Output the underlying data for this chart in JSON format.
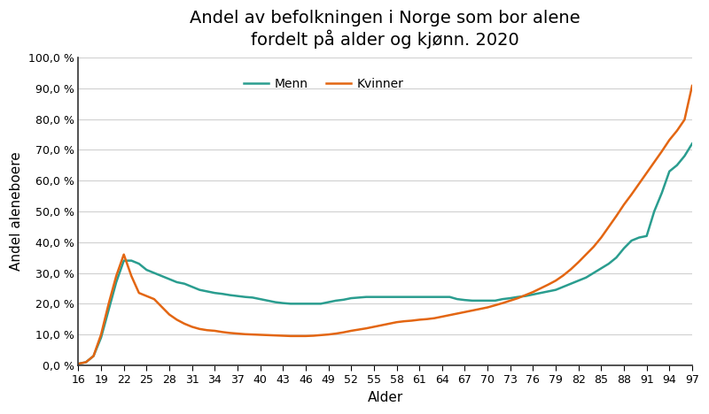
{
  "title": "Andel av befolkningen i Norge som bor alene\nfordelt på alder og kjønn. 2020",
  "xlabel": "Alder",
  "ylabel": "Andel aleneboere",
  "legend_menn": "Menn",
  "legend_kvinner": "Kvinner",
  "color_menn": "#2a9d8f",
  "color_kvinner": "#e36612",
  "ylim": [
    0,
    1.0
  ],
  "yticks": [
    0.0,
    0.1,
    0.2,
    0.3,
    0.4,
    0.5,
    0.6,
    0.7,
    0.8,
    0.9,
    1.0
  ],
  "ages": [
    16,
    17,
    18,
    19,
    20,
    21,
    22,
    23,
    24,
    25,
    26,
    27,
    28,
    29,
    30,
    31,
    32,
    33,
    34,
    35,
    36,
    37,
    38,
    39,
    40,
    41,
    42,
    43,
    44,
    45,
    46,
    47,
    48,
    49,
    50,
    51,
    52,
    53,
    54,
    55,
    56,
    57,
    58,
    59,
    60,
    61,
    62,
    63,
    64,
    65,
    66,
    67,
    68,
    69,
    70,
    71,
    72,
    73,
    74,
    75,
    76,
    77,
    78,
    79,
    80,
    81,
    82,
    83,
    84,
    85,
    86,
    87,
    88,
    89,
    90,
    91,
    92,
    93,
    94,
    95,
    96,
    97
  ],
  "menn": [
    0.005,
    0.01,
    0.03,
    0.09,
    0.18,
    0.27,
    0.34,
    0.34,
    0.33,
    0.31,
    0.3,
    0.29,
    0.28,
    0.27,
    0.265,
    0.255,
    0.245,
    0.24,
    0.235,
    0.232,
    0.228,
    0.225,
    0.222,
    0.22,
    0.215,
    0.21,
    0.205,
    0.202,
    0.2,
    0.2,
    0.2,
    0.2,
    0.2,
    0.205,
    0.21,
    0.213,
    0.218,
    0.22,
    0.222,
    0.222,
    0.222,
    0.222,
    0.222,
    0.222,
    0.222,
    0.222,
    0.222,
    0.222,
    0.222,
    0.222,
    0.215,
    0.212,
    0.21,
    0.21,
    0.21,
    0.21,
    0.215,
    0.218,
    0.222,
    0.225,
    0.23,
    0.235,
    0.24,
    0.245,
    0.255,
    0.265,
    0.275,
    0.285,
    0.3,
    0.315,
    0.33,
    0.35,
    0.38,
    0.405,
    0.415,
    0.42,
    0.5,
    0.56,
    0.63,
    0.65,
    0.68,
    0.72
  ],
  "kvinner": [
    0.005,
    0.01,
    0.03,
    0.1,
    0.2,
    0.29,
    0.36,
    0.29,
    0.235,
    0.225,
    0.215,
    0.19,
    0.165,
    0.148,
    0.135,
    0.125,
    0.118,
    0.114,
    0.112,
    0.108,
    0.105,
    0.103,
    0.101,
    0.1,
    0.099,
    0.098,
    0.097,
    0.096,
    0.095,
    0.095,
    0.095,
    0.096,
    0.098,
    0.1,
    0.103,
    0.107,
    0.112,
    0.116,
    0.12,
    0.125,
    0.13,
    0.135,
    0.14,
    0.143,
    0.145,
    0.148,
    0.15,
    0.153,
    0.158,
    0.163,
    0.168,
    0.173,
    0.178,
    0.183,
    0.188,
    0.195,
    0.202,
    0.21,
    0.218,
    0.228,
    0.238,
    0.25,
    0.262,
    0.275,
    0.292,
    0.312,
    0.335,
    0.36,
    0.385,
    0.415,
    0.45,
    0.485,
    0.522,
    0.555,
    0.59,
    0.625,
    0.66,
    0.695,
    0.732,
    0.762,
    0.798,
    0.908
  ],
  "xtick_labels": [
    "16",
    "19",
    "22",
    "25",
    "28",
    "31",
    "34",
    "37",
    "40",
    "43",
    "46",
    "49",
    "52",
    "55",
    "58",
    "61",
    "64",
    "67",
    "70",
    "73",
    "76",
    "79",
    "82",
    "85",
    "88",
    "91",
    "94",
    "97"
  ],
  "xtick_positions": [
    16,
    19,
    22,
    25,
    28,
    31,
    34,
    37,
    40,
    43,
    46,
    49,
    52,
    55,
    58,
    61,
    64,
    67,
    70,
    73,
    76,
    79,
    82,
    85,
    88,
    91,
    94,
    97
  ],
  "background_color": "#ffffff",
  "grid_color": "#d0d0d0",
  "linewidth": 1.8,
  "title_fontsize": 14,
  "axis_label_fontsize": 11,
  "tick_fontsize": 9,
  "legend_fontsize": 10
}
